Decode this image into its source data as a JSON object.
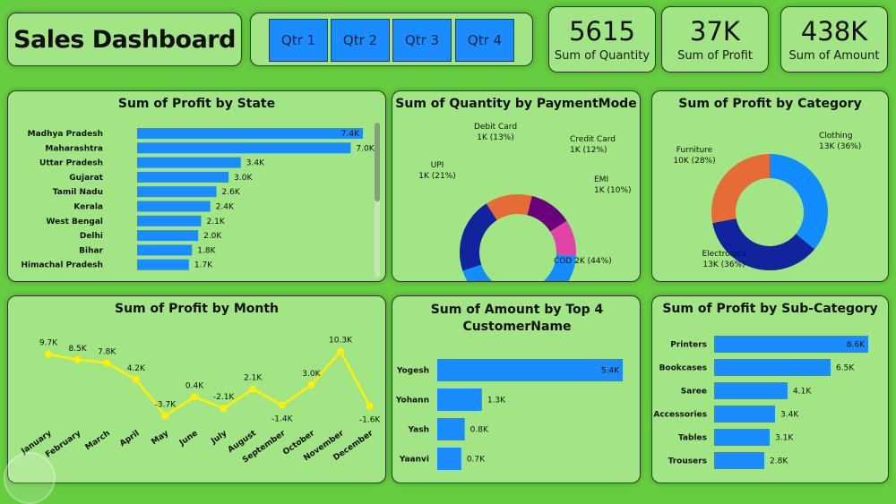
{
  "header": {
    "title": "Sales Dashboard",
    "slicer": [
      {
        "label": "Qtr 1"
      },
      {
        "label": "Qtr 2"
      },
      {
        "label": "Qtr 3"
      },
      {
        "label": "Qtr 4"
      }
    ]
  },
  "kpis": [
    {
      "value": "5615",
      "label": "Sum of Quantity"
    },
    {
      "value": "37K",
      "label": "Sum of Profit"
    },
    {
      "value": "438K",
      "label": "Sum of Amount"
    }
  ],
  "colors": {
    "bar": "#1a8cff",
    "line": "#ffef00",
    "card": "#a2e585",
    "background": "#66cc40"
  },
  "chart_data": [
    {
      "id": "state",
      "type": "bar",
      "orientation": "horizontal",
      "title": "Sum of Profit by State",
      "categories": [
        "Madhya Pradesh",
        "Maharashtra",
        "Uttar Pradesh",
        "Gujarat",
        "Tamil Nadu",
        "Kerala",
        "West Bengal",
        "Delhi",
        "Bihar",
        "Himachal Pradesh"
      ],
      "values": [
        7.4,
        7.0,
        3.4,
        3.0,
        2.6,
        2.4,
        2.1,
        2.0,
        1.8,
        1.7
      ],
      "labels": [
        "7.4K",
        "7.0K",
        "3.4K",
        "3.0K",
        "2.6K",
        "2.4K",
        "2.1K",
        "2.0K",
        "1.8K",
        "1.7K"
      ],
      "unit": "K",
      "scrollbar": true
    },
    {
      "id": "payment",
      "type": "pie",
      "donut": true,
      "title": "Sum of Quantity by PaymentMode",
      "slices": [
        {
          "name": "COD",
          "label": "COD 2K (44%)",
          "percent": 44,
          "color": "#118dff"
        },
        {
          "name": "UPI",
          "label": "UPI\n1K (21%)",
          "percent": 21,
          "color": "#12239e"
        },
        {
          "name": "Debit Card",
          "label": "Debit Card\n1K (13%)",
          "percent": 13,
          "color": "#e66c37"
        },
        {
          "name": "Credit Card",
          "label": "Credit Card\n1K (12%)",
          "percent": 12,
          "color": "#6b007b"
        },
        {
          "name": "EMI",
          "label": "EMI\n1K (10%)",
          "percent": 10,
          "color": "#e044a7"
        }
      ]
    },
    {
      "id": "category",
      "type": "pie",
      "donut": true,
      "title": "Sum of Profit by Category",
      "slices": [
        {
          "name": "Clothing",
          "label": "Clothing\n13K (36%)",
          "percent": 36,
          "color": "#118dff"
        },
        {
          "name": "Electronics",
          "label": "Electronics\n13K (36%)",
          "percent": 36,
          "color": "#12239e"
        },
        {
          "name": "Furniture",
          "label": "Furniture\n10K (28%)",
          "percent": 28,
          "color": "#e66c37"
        }
      ]
    },
    {
      "id": "month",
      "type": "line",
      "title": "Sum of Profit by Month",
      "categories": [
        "January",
        "February",
        "March",
        "April",
        "May",
        "June",
        "July",
        "August",
        "September",
        "October",
        "November",
        "December"
      ],
      "values": [
        9.7,
        8.5,
        7.8,
        4.2,
        -3.7,
        0.4,
        -2.1,
        2.1,
        -1.4,
        3.0,
        10.3,
        -1.6
      ],
      "labels": [
        "9.7K",
        "8.5K",
        "7.8K",
        "4.2K",
        "-3.7K",
        "0.4K",
        "-2.1K",
        "2.1K",
        "-1.4K",
        "3.0K",
        "10.3K",
        "-1.6K"
      ],
      "unit": "K"
    },
    {
      "id": "customer",
      "type": "bar",
      "orientation": "horizontal",
      "title": "Sum of Amount by Top 4 CustomerName",
      "categories": [
        "Yogesh",
        "Yohann",
        "Yash",
        "Yaanvi"
      ],
      "values": [
        5.4,
        1.3,
        0.8,
        0.7
      ],
      "labels": [
        "5.4K",
        "1.3K",
        "0.8K",
        "0.7K"
      ],
      "unit": "K"
    },
    {
      "id": "subcat",
      "type": "bar",
      "orientation": "horizontal",
      "title": "Sum of Profit by Sub-Category",
      "categories": [
        "Printers",
        "Bookcases",
        "Saree",
        "Accessories",
        "Tables",
        "Trousers"
      ],
      "values": [
        8.6,
        6.5,
        4.1,
        3.4,
        3.1,
        2.8
      ],
      "labels": [
        "8.6K",
        "6.5K",
        "4.1K",
        "3.4K",
        "3.1K",
        "2.8K"
      ],
      "unit": "K"
    }
  ]
}
